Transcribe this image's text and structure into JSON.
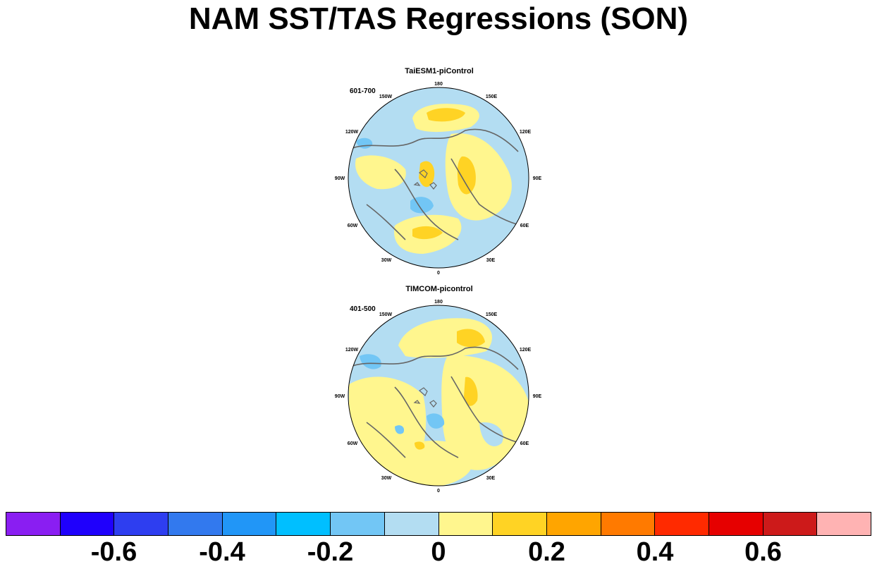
{
  "title": "NAM SST/TAS Regressions (SON)",
  "panels": [
    {
      "title": "TaiESM1-piControl",
      "period": "601-700",
      "lon_labels": {
        "180": "180",
        "150E": "150E",
        "120E": "120E",
        "90E": "90E",
        "60E": "60E",
        "30E": "30E",
        "0": "0",
        "30W": "30W",
        "60W": "60W",
        "90W": "90W",
        "120W": "120W",
        "150W": "150W"
      }
    },
    {
      "title": "TIMCOM-picontrol",
      "period": "401-500",
      "lon_labels": {
        "180": "180",
        "150E": "150E",
        "120E": "120E",
        "90E": "90E",
        "60E": "60E",
        "30E": "30E",
        "0": "0",
        "30W": "30W",
        "60W": "60W",
        "90W": "90W",
        "120W": "120W",
        "150W": "150W"
      }
    }
  ],
  "colorbar": {
    "colors": [
      "#8a1ef2",
      "#1f00fc",
      "#2e3ef0",
      "#3279ee",
      "#2196f7",
      "#00bfff",
      "#72c6f5",
      "#b3ddf2",
      "#fff68e",
      "#ffd324",
      "#ffa500",
      "#ff7a00",
      "#ff2a00",
      "#e60000",
      "#cd1a1a",
      "#ffb3b3"
    ],
    "ticks": [
      "-0.6",
      "-0.4",
      "-0.2",
      "0",
      "0.2",
      "0.4",
      "0.6"
    ],
    "tick_values": [
      -0.6,
      -0.4,
      -0.2,
      0,
      0.2,
      0.4,
      0.6
    ],
    "min": -0.8,
    "max": 0.8
  }
}
